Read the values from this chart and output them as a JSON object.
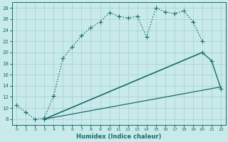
{
  "xlabel": "Humidex (Indice chaleur)",
  "bg_color": "#c8eaea",
  "grid_color": "#a8cccc",
  "line_color": "#1a6b6b",
  "xlim": [
    -0.5,
    22.5
  ],
  "ylim": [
    7,
    29
  ],
  "xticks": [
    0,
    1,
    2,
    3,
    4,
    5,
    6,
    7,
    8,
    9,
    10,
    11,
    12,
    13,
    14,
    15,
    16,
    17,
    18,
    19,
    20,
    21,
    22
  ],
  "yticks": [
    8,
    10,
    12,
    14,
    16,
    18,
    20,
    22,
    24,
    26,
    28
  ],
  "series": [
    {
      "x": [
        0,
        1,
        2,
        3,
        4,
        5,
        6,
        7,
        8,
        9,
        10,
        11,
        12,
        13,
        14,
        15,
        16,
        17,
        18,
        19,
        20
      ],
      "y": [
        10.5,
        9.2,
        8.0,
        8.2,
        12.2,
        19.0,
        21.0,
        23.0,
        24.5,
        25.5,
        27.2,
        26.5,
        26.2,
        26.5,
        22.8,
        28.0,
        27.3,
        27.0,
        27.5,
        25.5,
        22.0
      ],
      "marker": "+",
      "linestyle": ":",
      "linewidth": 1.0,
      "markersize": 4
    },
    {
      "x": [
        3,
        20,
        21,
        22
      ],
      "y": [
        8.0,
        20.0,
        18.5,
        13.5
      ],
      "marker": "+",
      "linestyle": "-",
      "linewidth": 1.0,
      "markersize": 4
    },
    {
      "x": [
        3,
        20
      ],
      "y": [
        8.0,
        20.0
      ],
      "marker": null,
      "linestyle": "-",
      "linewidth": 0.9,
      "markersize": 0
    },
    {
      "x": [
        3,
        22
      ],
      "y": [
        8.0,
        13.8
      ],
      "marker": null,
      "linestyle": "-",
      "linewidth": 0.9,
      "markersize": 0
    }
  ]
}
